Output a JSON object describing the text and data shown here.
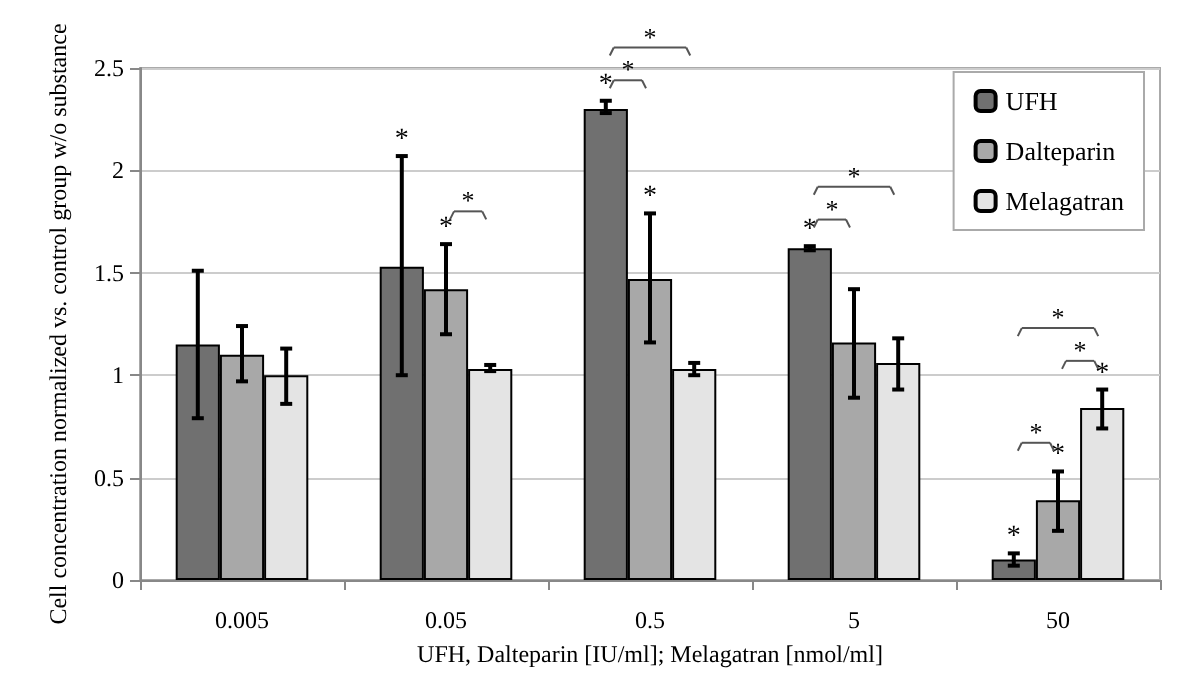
{
  "chart_data": {
    "type": "bar",
    "xlabel": "UFH, Dalteparin [IU/ml]; Melagatran [nmol/ml]",
    "ylabel": "Cell concentration normalized vs. control group w/o substance",
    "categories": [
      "0.005",
      "0.05",
      "0.5",
      "5",
      "50"
    ],
    "series": [
      {
        "name": "UFH",
        "color": "#707070",
        "values": [
          1.15,
          1.53,
          2.3,
          1.62,
          0.1
        ],
        "errors": [
          [
            0.79,
            1.51
          ],
          [
            1.0,
            2.07
          ],
          [
            2.28,
            2.34
          ],
          [
            1.61,
            1.63
          ],
          [
            0.07,
            0.13
          ]
        ],
        "value_labels": [
          null,
          "*",
          "*",
          "*",
          "*"
        ]
      },
      {
        "name": "Dalteparin",
        "color": "#a8a8a8",
        "values": [
          1.1,
          1.42,
          1.47,
          1.16,
          0.39
        ],
        "errors": [
          [
            0.97,
            1.24
          ],
          [
            1.2,
            1.64
          ],
          [
            1.16,
            1.79
          ],
          [
            0.89,
            1.42
          ],
          [
            0.24,
            0.53
          ]
        ],
        "value_labels": [
          null,
          "*",
          "*",
          null,
          "*"
        ]
      },
      {
        "name": "Melagatran",
        "color": "#e4e4e4",
        "values": [
          1.0,
          1.03,
          1.03,
          1.06,
          0.84
        ],
        "errors": [
          [
            0.86,
            1.13
          ],
          [
            1.02,
            1.05
          ],
          [
            1.0,
            1.06
          ],
          [
            0.93,
            1.18
          ],
          [
            0.74,
            0.93
          ]
        ],
        "value_labels": [
          null,
          null,
          null,
          null,
          "*"
        ]
      }
    ],
    "ylim": [
      0,
      2.5
    ],
    "yticks": [
      0,
      0.5,
      1,
      1.5,
      2,
      2.5
    ],
    "grid": "y",
    "legend": "top right",
    "annotations": [
      "*",
      "*",
      "*",
      "*",
      "*",
      "*",
      "*",
      "*"
    ]
  }
}
